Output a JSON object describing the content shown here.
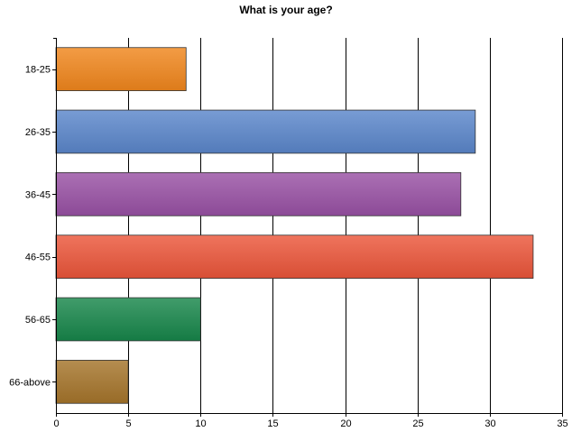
{
  "chart_data": {
    "type": "bar",
    "orientation": "horizontal",
    "title": "What is your age?",
    "xlabel": "",
    "ylabel": "",
    "categories": [
      "18-25",
      "26-35",
      "36-45",
      "46-55",
      "56-65",
      "66-above"
    ],
    "values": [
      9,
      29,
      28,
      33,
      10,
      5
    ],
    "xlim": [
      0,
      35
    ],
    "xticks": [
      0,
      5,
      10,
      15,
      20,
      25,
      30,
      35
    ],
    "grid": true,
    "legend": "none",
    "colors": [
      "#F0861C",
      "#5A86CA",
      "#9850A4",
      "#EB553A",
      "#17864A",
      "#A5742A"
    ]
  }
}
